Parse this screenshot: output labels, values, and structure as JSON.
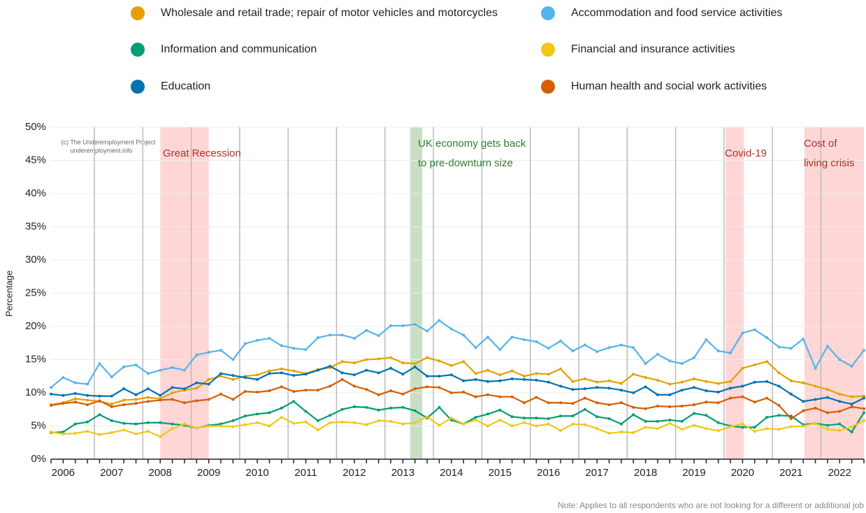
{
  "chart_data": {
    "type": "line",
    "y_label": "Percentage",
    "source_lines": [
      "(c) The Underemployment Project",
      "underemployment.info"
    ],
    "note": "Note: Applies to all respondents who are not looking for a different or additional job",
    "annotations": [
      {
        "lines": [
          "Great Recession"
        ],
        "color": "#a8332b",
        "shade": "#ffd6d6"
      },
      {
        "lines": [
          "UK economy gets back",
          "to pre-downturn size"
        ],
        "color": "#2e7d32",
        "shade": "#c9dfc4"
      },
      {
        "lines": [
          "Covid-19"
        ],
        "color": "#a8332b",
        "shade": "#ffd6d6"
      },
      {
        "lines": [
          "Cost of",
          "living crisis"
        ],
        "color": "#a8332b",
        "shade": "#ffd6d6"
      }
    ],
    "categories": [
      null,
      "2006",
      null,
      null,
      null,
      "2007",
      null,
      null,
      null,
      "2008",
      null,
      null,
      null,
      "2009",
      null,
      null,
      null,
      "2010",
      null,
      null,
      null,
      "2011",
      null,
      null,
      null,
      "2012",
      null,
      null,
      null,
      "2013",
      null,
      null,
      null,
      "2014",
      null,
      null,
      null,
      "2015",
      null,
      null,
      null,
      "2016",
      null,
      null,
      null,
      "2017",
      null,
      null,
      null,
      "2018",
      null,
      null,
      null,
      "2019",
      null,
      null,
      null,
      "2020",
      null,
      null,
      null,
      "2021",
      null,
      null,
      null,
      "2022",
      null,
      null
    ],
    "ylim": [
      0,
      50
    ],
    "yticks": [
      {
        "value": 0,
        "label": "0%"
      },
      {
        "value": 5,
        "label": "5%"
      },
      {
        "value": 10,
        "label": "10%"
      },
      {
        "value": 15,
        "label": "15%"
      },
      {
        "value": 20,
        "label": "20%"
      },
      {
        "value": 25,
        "label": "25%"
      },
      {
        "value": 30,
        "label": "30%"
      },
      {
        "value": 35,
        "label": "35%"
      },
      {
        "value": 40,
        "label": "40%"
      },
      {
        "value": 45,
        "label": "45%"
      },
      {
        "value": 50,
        "label": "50%"
      }
    ],
    "grid": true,
    "series": [
      {
        "name": "Wholesale and retail trade; repair of motor vehicles and motorcycles",
        "color": "#e69f00",
        "values": [
          8.2,
          8.5,
          9.1,
          8.9,
          8.7,
          8.3,
          8.9,
          9.0,
          9.3,
          9.1,
          10.0,
          10.4,
          10.7,
          12.0,
          12.5,
          12.0,
          12.5,
          12.7,
          13.3,
          13.6,
          13.3,
          12.9,
          13.5,
          13.8,
          14.7,
          14.5,
          15.0,
          15.1,
          15.3,
          14.5,
          14.4,
          15.3,
          14.8,
          14.1,
          14.7,
          12.9,
          13.4,
          12.7,
          13.3,
          12.5,
          12.9,
          12.8,
          13.6,
          11.7,
          12.1,
          11.6,
          11.8,
          11.4,
          12.8,
          12.3,
          11.9,
          11.3,
          11.6,
          12.1,
          11.7,
          11.4,
          11.7,
          13.7,
          14.2,
          14.7,
          13.0,
          11.8,
          11.5,
          11.0,
          10.5,
          9.8,
          9.4,
          9.5
        ]
      },
      {
        "name": "Accommodation and food service activities",
        "color": "#56b4e9",
        "values": [
          10.8,
          12.3,
          11.5,
          11.3,
          14.4,
          12.4,
          13.9,
          14.2,
          12.9,
          13.4,
          13.8,
          13.4,
          15.7,
          16.1,
          16.4,
          15.0,
          17.4,
          17.9,
          18.2,
          17.1,
          16.7,
          16.5,
          18.3,
          18.7,
          18.7,
          18.2,
          19.4,
          18.6,
          20.1,
          20.1,
          20.3,
          19.3,
          20.9,
          19.6,
          18.7,
          16.8,
          18.4,
          16.5,
          18.4,
          18.0,
          17.7,
          16.7,
          17.8,
          16.3,
          17.2,
          16.2,
          16.8,
          17.2,
          16.8,
          14.4,
          15.8,
          14.8,
          14.4,
          15.3,
          18.0,
          16.3,
          16.0,
          19.0,
          19.5,
          18.3,
          16.9,
          16.7,
          18.1,
          13.7,
          17.0,
          15.0,
          14.0,
          16.4
        ]
      },
      {
        "name": "Information and communication",
        "color": "#009e73",
        "values": [
          4.0,
          4.1,
          5.3,
          5.6,
          6.7,
          5.8,
          5.4,
          5.3,
          5.5,
          5.5,
          5.3,
          5.1,
          4.7,
          5.1,
          5.3,
          5.8,
          6.5,
          6.8,
          7.0,
          7.7,
          8.7,
          7.2,
          5.8,
          6.6,
          7.5,
          7.9,
          7.8,
          7.4,
          7.7,
          7.8,
          7.3,
          6.2,
          7.8,
          5.9,
          5.3,
          6.3,
          6.8,
          7.4,
          6.4,
          6.2,
          6.2,
          6.1,
          6.5,
          6.5,
          7.5,
          6.4,
          6.1,
          5.3,
          6.7,
          5.7,
          5.7,
          5.9,
          5.7,
          6.9,
          6.6,
          5.5,
          5.0,
          4.8,
          4.8,
          6.3,
          6.6,
          6.5,
          5.2,
          5.4,
          5.1,
          5.3,
          4.1,
          7.0
        ]
      },
      {
        "name": "Financial and insurance activities",
        "color": "#f0c816",
        "values": [
          4.1,
          3.8,
          3.9,
          4.2,
          3.7,
          4.0,
          4.4,
          3.8,
          4.2,
          3.4,
          4.6,
          5.3,
          4.7,
          5.0,
          5.0,
          4.9,
          5.2,
          5.5,
          5.0,
          6.3,
          5.4,
          5.6,
          4.4,
          5.5,
          5.6,
          5.5,
          5.2,
          5.8,
          5.7,
          5.3,
          5.5,
          6.4,
          5.1,
          6.2,
          5.3,
          5.9,
          5.0,
          5.9,
          5.0,
          5.5,
          5.0,
          5.3,
          4.3,
          5.3,
          5.2,
          4.6,
          3.9,
          4.1,
          4.0,
          4.8,
          4.6,
          5.4,
          4.5,
          5.1,
          4.6,
          4.3,
          4.9,
          5.3,
          4.2,
          4.6,
          4.5,
          4.9,
          5.0,
          5.4,
          4.5,
          4.3,
          4.9,
          5.8
        ]
      },
      {
        "name": "Education",
        "color": "#0072b2",
        "values": [
          9.8,
          9.6,
          9.9,
          9.6,
          9.5,
          9.5,
          10.6,
          9.7,
          10.6,
          9.6,
          10.8,
          10.6,
          11.5,
          11.3,
          12.9,
          12.6,
          12.3,
          12.0,
          12.9,
          13.0,
          12.6,
          12.8,
          13.4,
          14.0,
          13.0,
          12.7,
          13.4,
          13.0,
          13.7,
          12.8,
          13.9,
          12.5,
          12.5,
          12.7,
          11.8,
          12.0,
          11.7,
          11.8,
          12.1,
          12.0,
          11.9,
          11.6,
          11.0,
          10.5,
          10.6,
          10.8,
          10.7,
          10.4,
          10.0,
          10.9,
          9.7,
          9.7,
          10.4,
          10.8,
          10.3,
          10.1,
          10.7,
          11.0,
          11.6,
          11.7,
          11.0,
          9.8,
          8.7,
          9.0,
          9.3,
          8.7,
          8.3,
          9.2
        ]
      },
      {
        "name": "Human health and social work activities",
        "color": "#d55e00",
        "values": [
          8.1,
          8.4,
          8.6,
          8.2,
          8.8,
          7.9,
          8.2,
          8.4,
          8.7,
          8.9,
          9.0,
          8.5,
          8.8,
          9.0,
          9.8,
          9.0,
          10.2,
          10.1,
          10.3,
          10.9,
          10.2,
          10.4,
          10.4,
          11.0,
          12.0,
          11.0,
          10.5,
          9.7,
          10.3,
          9.8,
          10.6,
          10.9,
          10.8,
          10.0,
          10.1,
          9.4,
          9.7,
          9.4,
          9.4,
          8.5,
          9.3,
          8.5,
          8.5,
          8.4,
          9.2,
          8.5,
          8.2,
          8.5,
          7.8,
          7.6,
          8.0,
          7.9,
          8.0,
          8.2,
          8.6,
          8.5,
          9.2,
          9.4,
          8.6,
          9.2,
          8.1,
          6.1,
          7.3,
          7.7,
          7.0,
          7.2,
          7.9,
          7.6
        ]
      }
    ]
  }
}
